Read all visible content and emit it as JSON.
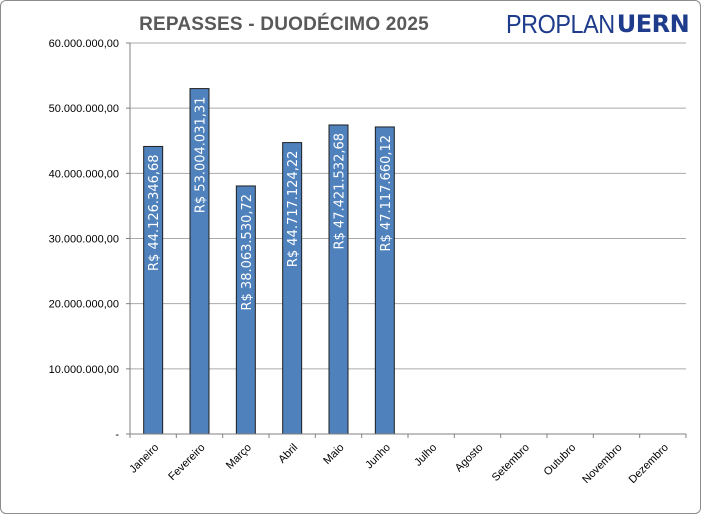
{
  "header": {
    "logo_part1": "PROPLAN",
    "logo_part2": "UERN"
  },
  "colors": {
    "bar_fill": "#4f81bd",
    "bar_stroke": "#1f1f1f",
    "grid": "#aaaaaa",
    "title": "#595959",
    "logo": "#1f3b8c"
  },
  "chart_data": {
    "type": "bar",
    "title": "REPASSES - DUODÉCIMO 2025",
    "xlabel": "",
    "ylabel": "",
    "ylim": [
      0,
      60000000
    ],
    "grid": true,
    "legend": "none",
    "yticks": [
      {
        "value": 0,
        "label": "-"
      },
      {
        "value": 10000000,
        "label": "10.000.000,00"
      },
      {
        "value": 20000000,
        "label": "20.000.000,00"
      },
      {
        "value": 30000000,
        "label": "30.000.000,00"
      },
      {
        "value": 40000000,
        "label": "40.000.000,00"
      },
      {
        "value": 50000000,
        "label": "50.000.000,00"
      },
      {
        "value": 60000000,
        "label": "60.000.000,00"
      }
    ],
    "categories": [
      "Janeiro",
      "Fevereiro",
      "Março",
      "Abril",
      "Maio",
      "Junho",
      "Julho",
      "Agosto",
      "Setembro",
      "Outubro",
      "Novembro",
      "Dezembro"
    ],
    "values": [
      44126346.68,
      53004031.31,
      38063530.72,
      44717124.22,
      47421532.68,
      47117660.12,
      null,
      null,
      null,
      null,
      null,
      null
    ],
    "data_labels": [
      "R$ 44.126.346,68",
      "R$ 53.004.031,31",
      "R$ 38.063.530,72",
      "R$ 44.717.124,22",
      "R$ 47.421.532,68",
      "R$ 47.117.660,12",
      "",
      "",
      "",
      "",
      "",
      ""
    ]
  }
}
